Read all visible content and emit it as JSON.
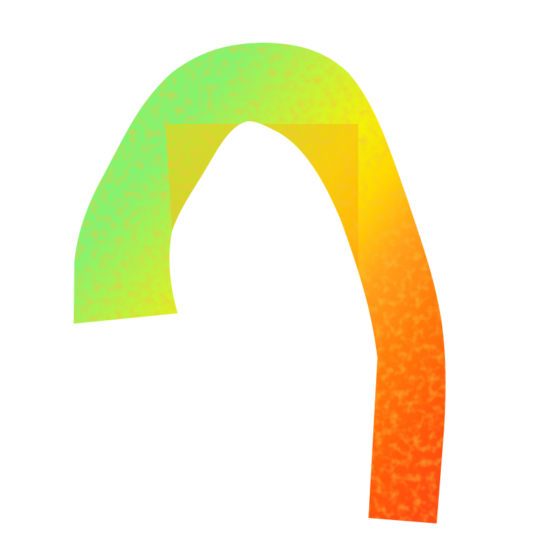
{
  "scene": {
    "background": "#ffffff",
    "colormap": [
      "#86f36f",
      "#c5f23a",
      "#f3f10a",
      "#ffd800",
      "#ff9f1a",
      "#ff7a0a",
      "#ff5a0a",
      "#ff4a10"
    ],
    "speckle_color": "#e89b10",
    "shape": "vessel-arch"
  }
}
